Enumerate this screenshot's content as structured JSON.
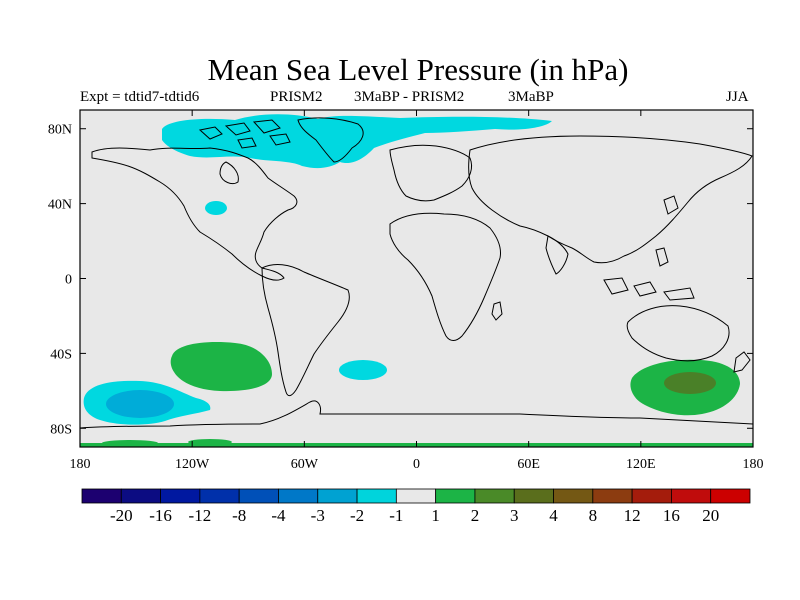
{
  "title": "Mean Sea Level Pressure (in hPa)",
  "subtitle": {
    "expt": "Expt = tdtid7-tdtid6",
    "model": "PRISM2",
    "period": "3MaBP - PRISM2",
    "model2": "3MaBP",
    "season": "JJA"
  },
  "map": {
    "lon_labels": [
      "180",
      "120W",
      "60W",
      "0",
      "60E",
      "120E",
      "180"
    ],
    "lon_values": [
      -180,
      -120,
      -60,
      0,
      60,
      120,
      180
    ],
    "lat_labels": [
      "80N",
      "40N",
      "0",
      "40S",
      "80S"
    ],
    "lat_values": [
      80,
      40,
      0,
      -40,
      -80
    ],
    "lon_range": [
      -180,
      180
    ],
    "lat_range": [
      -90,
      90
    ],
    "land_color": "#e8e8e8",
    "coast_color": "#000000",
    "anomaly_regions": [
      {
        "level": "-2",
        "color": "#00d8e0",
        "region": "Arctic / Greenland",
        "lon_range": [
          -135,
          75
        ],
        "lat_range": [
          70,
          87
        ]
      },
      {
        "level": "-2",
        "color": "#00d8e0",
        "region": "North America",
        "lon_range": [
          -114,
          -104
        ],
        "lat_range": [
          34,
          41
        ]
      },
      {
        "level": "2",
        "color": "#1cb446",
        "region": "South Pacific",
        "lon_range": [
          -130,
          -72
        ],
        "lat_range": [
          -60,
          -33
        ]
      },
      {
        "level": "-2",
        "color": "#00d8e0",
        "region": "South Atlantic",
        "lon_range": [
          -42,
          -15
        ],
        "lat_range": [
          -53,
          -44
        ]
      },
      {
        "level": "-2",
        "color": "#00d8e0",
        "region": "Southeast Pacific",
        "lon_range": [
          -180,
          -112
        ],
        "lat_range": [
          -77,
          -55
        ]
      },
      {
        "level": "-3",
        "color": "#00acd8",
        "region": "Southeast Pacific core",
        "lon_range": [
          -168,
          -130
        ],
        "lat_range": [
          -73,
          -60
        ]
      },
      {
        "level": "2",
        "color": "#1cb446",
        "region": "Southern Ocean south of Australia",
        "lon_range": [
          118,
          178
        ],
        "lat_range": [
          -71,
          -44
        ]
      },
      {
        "level": "3",
        "color": "#4a8028",
        "region": "Southern Ocean core",
        "lon_range": [
          135,
          160
        ],
        "lat_range": [
          -60,
          -50
        ]
      },
      {
        "level": "2",
        "color": "#1cb446",
        "region": "Antarctica southern edge",
        "lon_range": [
          -180,
          180
        ],
        "lat_range": [
          -90,
          -87
        ]
      }
    ]
  },
  "colorbar": {
    "labels": [
      "-20",
      "-16",
      "-12",
      "-8",
      "-4",
      "-3",
      "-2",
      "-1",
      "1",
      "2",
      "3",
      "4",
      "8",
      "12",
      "16",
      "20"
    ],
    "colors": [
      "#1c0070",
      "#0c0c82",
      "#0018a0",
      "#0030aa",
      "#0050b8",
      "#0078c8",
      "#00a2d2",
      "#00d4dc",
      "#e8e8e8",
      "#1cb446",
      "#4a8a28",
      "#5a6e1c",
      "#745814",
      "#8c3c10",
      "#a41c0c",
      "#c00c0c",
      "#cc0000"
    ]
  }
}
